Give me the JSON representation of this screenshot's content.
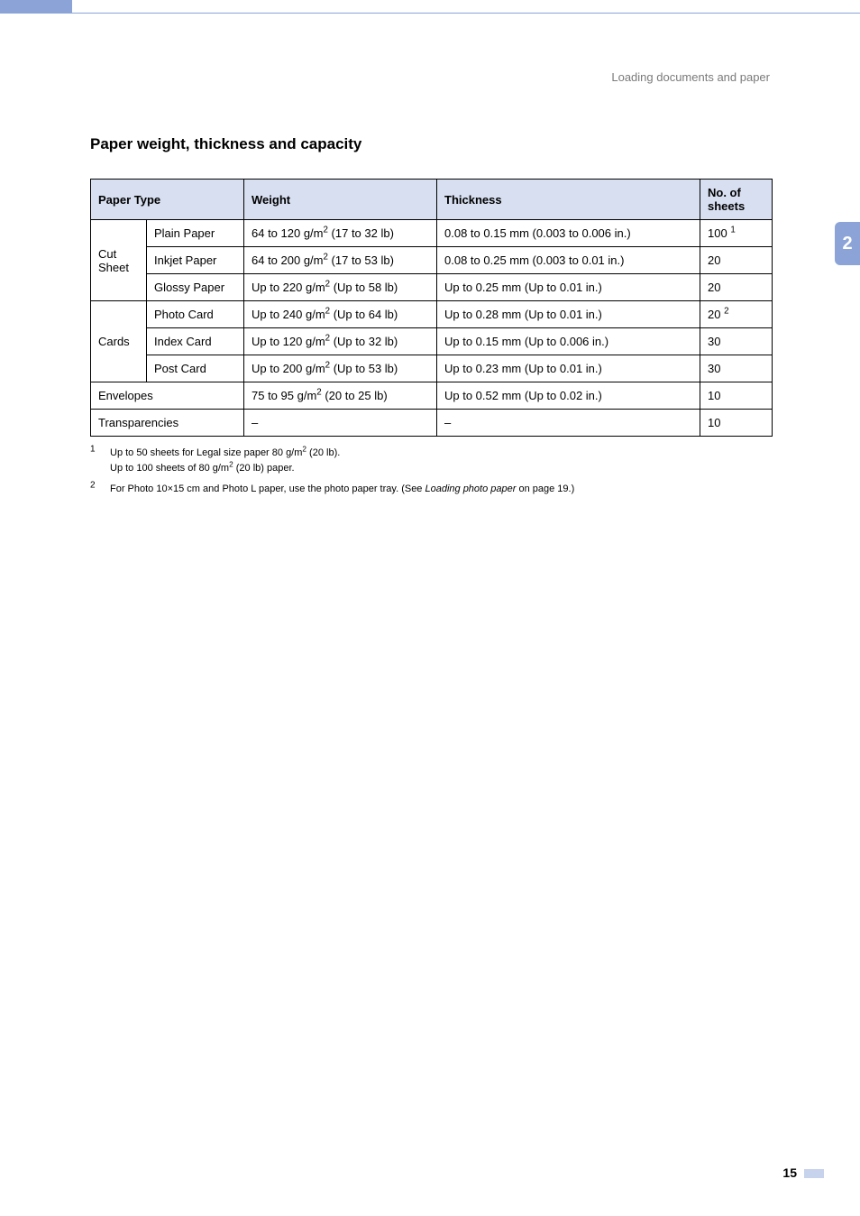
{
  "running_head": "Loading documents and paper",
  "section_title": "Paper weight, thickness and capacity",
  "side_tab": "2",
  "page_number": "15",
  "colors": {
    "accent": "#8ba3d7",
    "header_bg": "#d7dff0",
    "border": "#000000",
    "running_head": "#7a7a7a",
    "side_tab_text": "#ffffff",
    "page_bar": "#c7d2ec"
  },
  "table": {
    "headers": {
      "paper_type": "Paper Type",
      "weight": "Weight",
      "thickness": "Thickness",
      "sheets": "No. of sheets"
    },
    "rows": [
      {
        "group": "Cut Sheet",
        "sub": "Plain Paper",
        "weight_pre": "64 to 120 g/m",
        "weight_post": " (17 to 32 lb)",
        "thickness": "0.08 to 0.15 mm (0.003 to 0.006 in.)",
        "sheets": "100",
        "sheets_sup": "1"
      },
      {
        "sub": "Inkjet Paper",
        "weight_pre": "64 to 200 g/m",
        "weight_post": " (17 to 53 lb)",
        "thickness": "0.08 to 0.25 mm (0.003 to 0.01 in.)",
        "sheets": "20"
      },
      {
        "sub": "Glossy Paper",
        "weight_pre": "Up to 220 g/m",
        "weight_post": " (Up to 58 lb)",
        "thickness": "Up to 0.25 mm (Up to 0.01 in.)",
        "sheets": "20"
      },
      {
        "group": "Cards",
        "sub": "Photo Card",
        "weight_pre": "Up to 240 g/m",
        "weight_post": " (Up to 64 lb)",
        "thickness": "Up to 0.28 mm (Up to 0.01 in.)",
        "sheets": "20",
        "sheets_sup": "2"
      },
      {
        "sub": "Index Card",
        "weight_pre": "Up to 120 g/m",
        "weight_post": " (Up to 32 lb)",
        "thickness": "Up to 0.15 mm (Up to 0.006 in.)",
        "sheets": "30"
      },
      {
        "sub": "Post Card",
        "weight_pre": "Up to 200 g/m",
        "weight_post": " (Up to 53 lb)",
        "thickness": "Up to 0.23 mm (Up to 0.01 in.)",
        "sheets": "30"
      },
      {
        "full": "Envelopes",
        "weight_pre": "75 to 95 g/m",
        "weight_post": " (20 to 25 lb)",
        "thickness": "Up to 0.52 mm (Up to 0.02 in.)",
        "sheets": "10"
      },
      {
        "full": "Transparencies",
        "weight_literal": "–",
        "thickness": "–",
        "sheets": "10"
      }
    ]
  },
  "footnotes": {
    "fn1_num": "1",
    "fn1_l1a": "Up to 50 sheets for Legal size paper 80 g/m",
    "fn1_l1b": " (20 lb).",
    "fn1_l2a": "Up to 100 sheets of 80 g/m",
    "fn1_l2b": " (20 lb) paper.",
    "fn2_num": "2",
    "fn2_a": "For Photo 10×15 cm and Photo L paper, use the photo paper tray. (See ",
    "fn2_em": "Loading photo paper",
    "fn2_b": " on page 19.)"
  }
}
